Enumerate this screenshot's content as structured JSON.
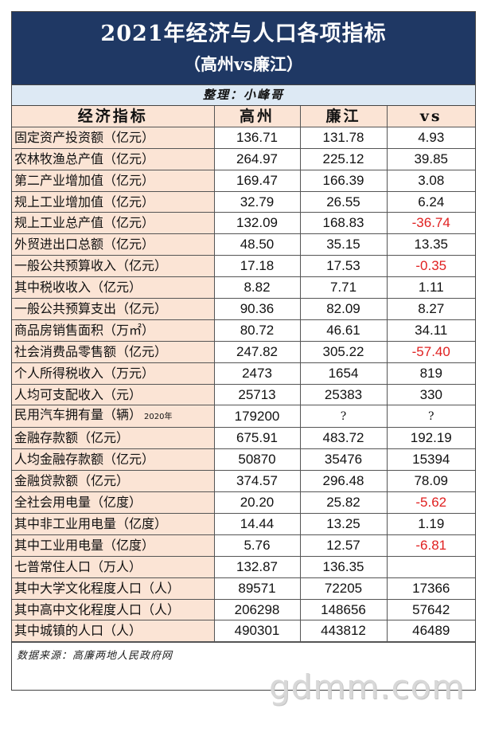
{
  "title": "2021年经济与人口各项指标",
  "subtitle": "（高州vs廉江）",
  "credit": "整理：小峰哥",
  "columns": [
    "经济指标",
    "高州",
    "廉江",
    "vs"
  ],
  "rows": [
    {
      "label": "固定资产投资额（亿元）",
      "a": "136.71",
      "b": "131.78",
      "vs": "4.93",
      "neg": false
    },
    {
      "label": "农林牧渔总产值（亿元）",
      "a": "264.97",
      "b": "225.12",
      "vs": "39.85",
      "neg": false
    },
    {
      "label": "第二产业增加值（亿元）",
      "a": "169.47",
      "b": "166.39",
      "vs": "3.08",
      "neg": false
    },
    {
      "label": "规上工业增加值（亿元）",
      "a": "32.79",
      "b": "26.55",
      "vs": "6.24",
      "neg": false
    },
    {
      "label": "规上工业总产值（亿元）",
      "a": "132.09",
      "b": "168.83",
      "vs": "-36.74",
      "neg": true
    },
    {
      "label": "外贸进出口总额（亿元）",
      "a": "48.50",
      "b": "35.15",
      "vs": "13.35",
      "neg": false
    },
    {
      "label": "一般公共预算收入（亿元）",
      "a": "17.18",
      "b": "17.53",
      "vs": "-0.35",
      "neg": true
    },
    {
      "label": "其中税收收入（亿元）",
      "a": "8.82",
      "b": "7.71",
      "vs": "1.11",
      "neg": false
    },
    {
      "label": "一般公共预算支出（亿元）",
      "a": "90.36",
      "b": "82.09",
      "vs": "8.27",
      "neg": false
    },
    {
      "label": "商品房销售面积（万㎡）",
      "a": "80.72",
      "b": "46.61",
      "vs": "34.11",
      "neg": false
    },
    {
      "label": "社会消费品零售额（亿元）",
      "a": "247.82",
      "b": "305.22",
      "vs": "-57.40",
      "neg": true
    },
    {
      "label": "个人所得税收入（万元）",
      "a": "2473",
      "b": "1654",
      "vs": "819",
      "neg": false
    },
    {
      "label": "人均可支配收入（元）",
      "a": "25713",
      "b": "25383",
      "vs": "330",
      "neg": false
    },
    {
      "label": "民用汽车拥有量（辆）",
      "note": "2020年",
      "a": "179200",
      "b": "?",
      "vs": "?",
      "neg": false
    },
    {
      "label": "金融存款额（亿元）",
      "a": "675.91",
      "b": "483.72",
      "vs": "192.19",
      "neg": false
    },
    {
      "label": "人均金融存款额（亿元）",
      "a": "50870",
      "b": "35476",
      "vs": "15394",
      "neg": false
    },
    {
      "label": "金融贷款额（亿元）",
      "a": "374.57",
      "b": "296.48",
      "vs": "78.09",
      "neg": false
    },
    {
      "label": "全社会用电量（亿度）",
      "a": "20.20",
      "b": "25.82",
      "vs": "-5.62",
      "neg": true
    },
    {
      "label": "其中非工业用电量（亿度）",
      "a": "14.44",
      "b": "13.25",
      "vs": "1.19",
      "neg": false
    },
    {
      "label": "其中工业用电量（亿度）",
      "a": "5.76",
      "b": "12.57",
      "vs": "-6.81",
      "neg": true
    },
    {
      "label": "七普常住人口（万人）",
      "a": "132.87",
      "b": "136.35",
      "vs": "",
      "neg": false
    },
    {
      "label": "其中大学文化程度人口（人）",
      "a": "89571",
      "b": "72205",
      "vs": "17366",
      "neg": false
    },
    {
      "label": "其中高中文化程度人口（人）",
      "a": "206298",
      "b": "148656",
      "vs": "57642",
      "neg": false
    },
    {
      "label": "其中城镇的人口（人）",
      "a": "490301",
      "b": "443812",
      "vs": "46489",
      "neg": false
    }
  ],
  "source": "数据来源：高廉两地人民政府网",
  "watermark": "gdmm.com",
  "colors": {
    "banner": "#1f3864",
    "label_bg": "#fbe4d5",
    "credit_bg": "#dde9f4",
    "negative": "#e02020"
  }
}
